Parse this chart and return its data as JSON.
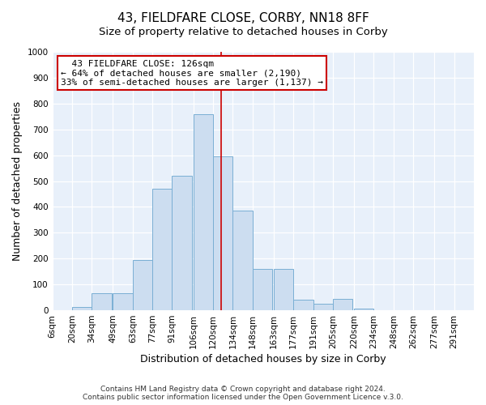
{
  "title": "43, FIELDFARE CLOSE, CORBY, NN18 8FF",
  "subtitle": "Size of property relative to detached houses in Corby",
  "xlabel": "Distribution of detached houses by size in Corby",
  "ylabel": "Number of detached properties",
  "bin_labels": [
    "6sqm",
    "20sqm",
    "34sqm",
    "49sqm",
    "63sqm",
    "77sqm",
    "91sqm",
    "106sqm",
    "120sqm",
    "134sqm",
    "148sqm",
    "163sqm",
    "177sqm",
    "191sqm",
    "205sqm",
    "220sqm",
    "234sqm",
    "248sqm",
    "262sqm",
    "277sqm",
    "291sqm"
  ],
  "bin_left_edges": [
    6,
    20,
    34,
    49,
    63,
    77,
    91,
    106,
    120,
    134,
    148,
    163,
    177,
    191,
    205,
    220,
    234,
    248,
    262,
    277,
    291
  ],
  "bin_width": 14,
  "bar_heights": [
    0,
    13,
    65,
    65,
    195,
    470,
    520,
    760,
    595,
    385,
    160,
    160,
    40,
    25,
    45,
    8,
    0,
    0,
    0,
    0,
    0
  ],
  "bar_color": "#ccddf0",
  "bar_edge_color": "#7aafd4",
  "vline_x": 126,
  "vline_color": "#cc0000",
  "ylim": [
    0,
    1000
  ],
  "yticks": [
    0,
    100,
    200,
    300,
    400,
    500,
    600,
    700,
    800,
    900,
    1000
  ],
  "annotation_title": "43 FIELDFARE CLOSE: 126sqm",
  "annotation_line1": "← 64% of detached houses are smaller (2,190)",
  "annotation_line2": "33% of semi-detached houses are larger (1,137) →",
  "annotation_box_color": "#ffffff",
  "annotation_border_color": "#cc0000",
  "footer1": "Contains HM Land Registry data © Crown copyright and database right 2024.",
  "footer2": "Contains public sector information licensed under the Open Government Licence v.3.0.",
  "fig_bg_color": "#ffffff",
  "axes_bg_color": "#e8f0fa",
  "grid_color": "#ffffff",
  "title_fontsize": 11,
  "subtitle_fontsize": 9.5,
  "axis_label_fontsize": 9,
  "tick_fontsize": 7.5,
  "footer_fontsize": 6.5
}
